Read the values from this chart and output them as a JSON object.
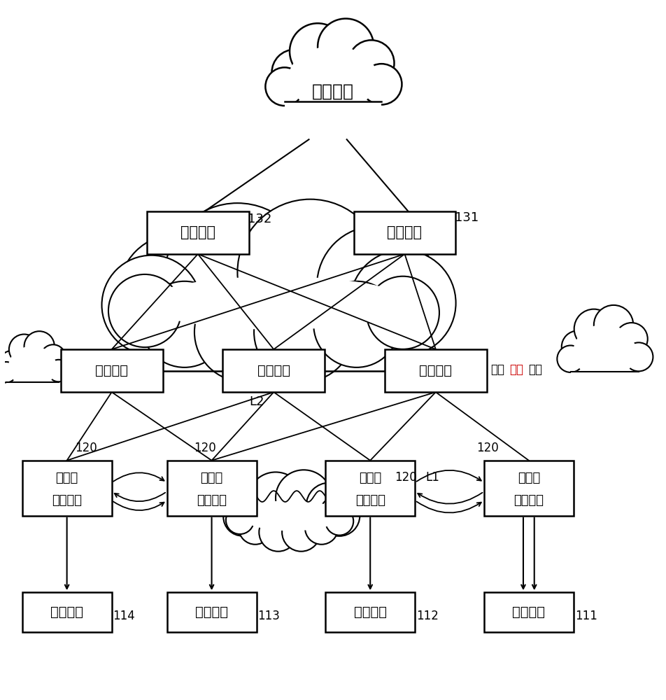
{
  "bg_color": "#ffffff",
  "line_color": "#000000",
  "text_color": "#000000",
  "gray_text_color": "#aaaaaa",
  "cloud_top_label": "三层网络",
  "gw_left_label": "网关设备",
  "gw_right_label": "网关设备",
  "gw_left_id": "132",
  "gw_right_id": "131",
  "tr_left_label": "传输设备",
  "tr_mid_label": "传输设备",
  "tr_right_label": "传输设备",
  "edge_label_black": "边缘",
  "edge_label_red": "二层",
  "edge_label_black2": "网络",
  "sv_ll_label": "服务器\n接入设备",
  "sv_ml_label": "服务器\n接入设备",
  "sv_mr_label": "服务器\n接入设备",
  "sv_rr_label": "服务器\n接入设备",
  "h1_label": "主机设备",
  "h2_label": "主机设备",
  "h3_label": "主机设备",
  "h4_label": "主机设备",
  "h1_id": "114",
  "h2_id": "113",
  "h3_id": "112",
  "h4_id": "111",
  "l2_label": "L2",
  "l1_label": "L1",
  "sv_ll_id": "120",
  "sv_ml_id": "120",
  "sv_mr_id": "120",
  "sv_rr_id": "120"
}
